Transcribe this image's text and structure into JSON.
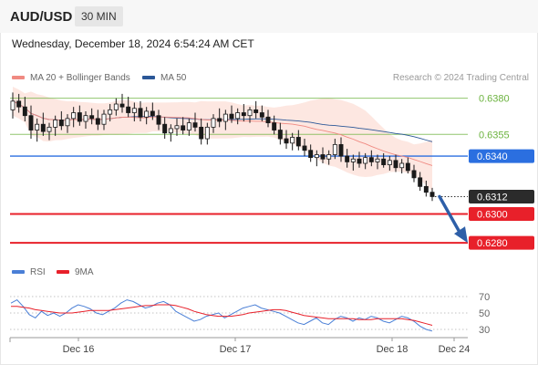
{
  "header": {
    "symbol": "AUD/USD",
    "timeframe": "30 MIN"
  },
  "datetime": "Wednesday, December 18, 2024 6:54:24 AM CET",
  "legend": {
    "ma20": {
      "label": "MA 20 + Bollinger Bands",
      "color": "#f08a82"
    },
    "ma50": {
      "label": "MA 50",
      "color": "#2b5797"
    },
    "credit": "Research © 2024 Trading Central",
    "rsi": {
      "label": "RSI",
      "color": "#4a7fd6"
    },
    "ma9": {
      "label": "9MA",
      "color": "#e8202a"
    }
  },
  "chart_data": {
    "type": "candlestick",
    "x_ticks": [
      "Dec 16",
      "Dec 17",
      "Dec 18",
      "Dec 24"
    ],
    "price_ylim": [
      0.627,
      0.6388
    ],
    "last_price": "0.6312",
    "levels": [
      {
        "value": 0.638,
        "label": "0.6380",
        "kind": "resistance",
        "color": "#6cb33f"
      },
      {
        "value": 0.6355,
        "label": "0.6355",
        "kind": "resistance",
        "color": "#6cb33f"
      },
      {
        "value": 0.634,
        "label": "0.6340",
        "kind": "pivot",
        "color": "#2b6fe0"
      },
      {
        "value": 0.63,
        "label": "0.6300",
        "kind": "support",
        "color": "#e8202a"
      },
      {
        "value": 0.628,
        "label": "0.6280",
        "kind": "support",
        "color": "#e8202a"
      }
    ],
    "forecast": {
      "from": 0.6312,
      "to": 0.628,
      "direction": "down"
    },
    "candles": [
      [
        0.6372,
        0.6384,
        0.6366,
        0.6378
      ],
      [
        0.6378,
        0.6383,
        0.637,
        0.6374
      ],
      [
        0.6374,
        0.6381,
        0.6364,
        0.6368
      ],
      [
        0.6368,
        0.6375,
        0.6352,
        0.6358
      ],
      [
        0.6358,
        0.6366,
        0.635,
        0.6362
      ],
      [
        0.6362,
        0.637,
        0.6354,
        0.6357
      ],
      [
        0.6357,
        0.6363,
        0.6351,
        0.636
      ],
      [
        0.636,
        0.6368,
        0.6354,
        0.6365
      ],
      [
        0.6365,
        0.6371,
        0.6358,
        0.6361
      ],
      [
        0.6361,
        0.6369,
        0.6356,
        0.6366
      ],
      [
        0.6366,
        0.6374,
        0.636,
        0.637
      ],
      [
        0.637,
        0.6375,
        0.6361,
        0.6364
      ],
      [
        0.6364,
        0.6371,
        0.6359,
        0.6368
      ],
      [
        0.6368,
        0.6373,
        0.6362,
        0.6366
      ],
      [
        0.6366,
        0.6372,
        0.6358,
        0.6362
      ],
      [
        0.6362,
        0.6372,
        0.6358,
        0.6369
      ],
      [
        0.6369,
        0.6376,
        0.6364,
        0.6372
      ],
      [
        0.6372,
        0.638,
        0.6368,
        0.6376
      ],
      [
        0.6376,
        0.6383,
        0.637,
        0.6374
      ],
      [
        0.6374,
        0.6381,
        0.6367,
        0.637
      ],
      [
        0.637,
        0.6377,
        0.6364,
        0.6373
      ],
      [
        0.6373,
        0.6378,
        0.6364,
        0.6367
      ],
      [
        0.6367,
        0.6374,
        0.6362,
        0.6371
      ],
      [
        0.6371,
        0.6377,
        0.6365,
        0.6368
      ],
      [
        0.6368,
        0.6372,
        0.6358,
        0.6362
      ],
      [
        0.6362,
        0.6367,
        0.6352,
        0.6356
      ],
      [
        0.6356,
        0.6362,
        0.635,
        0.6359
      ],
      [
        0.6359,
        0.6366,
        0.6354,
        0.6361
      ],
      [
        0.6361,
        0.6367,
        0.6355,
        0.6358
      ],
      [
        0.6358,
        0.6366,
        0.6354,
        0.6363
      ],
      [
        0.6363,
        0.637,
        0.6357,
        0.636
      ],
      [
        0.636,
        0.6366,
        0.6348,
        0.6352
      ],
      [
        0.6352,
        0.6363,
        0.6348,
        0.636
      ],
      [
        0.636,
        0.6369,
        0.6356,
        0.6366
      ],
      [
        0.6366,
        0.6373,
        0.636,
        0.6364
      ],
      [
        0.6364,
        0.6372,
        0.6358,
        0.6369
      ],
      [
        0.6369,
        0.6375,
        0.6363,
        0.6366
      ],
      [
        0.6366,
        0.6373,
        0.6362,
        0.637
      ],
      [
        0.637,
        0.6376,
        0.6364,
        0.6368
      ],
      [
        0.6368,
        0.6374,
        0.6363,
        0.6372
      ],
      [
        0.6372,
        0.6378,
        0.6366,
        0.637
      ],
      [
        0.637,
        0.6375,
        0.6364,
        0.6367
      ],
      [
        0.6367,
        0.6372,
        0.636,
        0.6363
      ],
      [
        0.6363,
        0.6368,
        0.6355,
        0.6358
      ],
      [
        0.6358,
        0.6363,
        0.6348,
        0.6352
      ],
      [
        0.6352,
        0.6358,
        0.6345,
        0.6349
      ],
      [
        0.6349,
        0.6356,
        0.6344,
        0.6353
      ],
      [
        0.6353,
        0.6358,
        0.6344,
        0.6347
      ],
      [
        0.6347,
        0.6352,
        0.634,
        0.6344
      ],
      [
        0.6344,
        0.6348,
        0.6336,
        0.6339
      ],
      [
        0.6339,
        0.6344,
        0.6333,
        0.6341
      ],
      [
        0.6341,
        0.6346,
        0.6335,
        0.6338
      ],
      [
        0.6338,
        0.6344,
        0.6334,
        0.6341
      ],
      [
        0.6341,
        0.6352,
        0.6338,
        0.6348
      ],
      [
        0.6348,
        0.6353,
        0.6336,
        0.634
      ],
      [
        0.634,
        0.6345,
        0.6332,
        0.6336
      ],
      [
        0.6336,
        0.6341,
        0.633,
        0.6338
      ],
      [
        0.6338,
        0.6343,
        0.6332,
        0.6335
      ],
      [
        0.6335,
        0.6342,
        0.6331,
        0.6339
      ],
      [
        0.6339,
        0.6344,
        0.6333,
        0.6336
      ],
      [
        0.6336,
        0.6341,
        0.6331,
        0.6338
      ],
      [
        0.6338,
        0.6342,
        0.6332,
        0.6334
      ],
      [
        0.6334,
        0.634,
        0.633,
        0.6337
      ],
      [
        0.6337,
        0.6341,
        0.6329,
        0.6332
      ],
      [
        0.6332,
        0.6338,
        0.6328,
        0.6335
      ],
      [
        0.6335,
        0.6339,
        0.6328,
        0.633
      ],
      [
        0.633,
        0.6334,
        0.6322,
        0.6325
      ],
      [
        0.6325,
        0.6329,
        0.6316,
        0.6319
      ],
      [
        0.6319,
        0.6323,
        0.6312,
        0.6315
      ],
      [
        0.6315,
        0.6318,
        0.6309,
        0.6312
      ]
    ],
    "rsi": {
      "ticks": [
        70,
        50,
        30
      ],
      "ylim": [
        20,
        80
      ],
      "rsi_values": [
        62,
        66,
        58,
        48,
        44,
        52,
        47,
        50,
        46,
        50,
        56,
        60,
        58,
        55,
        50,
        48,
        52,
        56,
        62,
        66,
        64,
        60,
        56,
        58,
        62,
        64,
        60,
        52,
        48,
        44,
        40,
        42,
        46,
        48,
        50,
        44,
        48,
        52,
        56,
        58,
        60,
        56,
        54,
        52,
        50,
        46,
        42,
        38,
        36,
        40,
        44,
        38,
        36,
        42,
        46,
        44,
        40,
        44,
        42,
        46,
        44,
        40,
        38,
        42,
        46,
        44,
        40,
        34,
        30,
        28
      ],
      "ma9_values": [
        58,
        58,
        57,
        56,
        54,
        53,
        52,
        51,
        50,
        50,
        50,
        51,
        52,
        53,
        53,
        53,
        53,
        54,
        55,
        56,
        57,
        58,
        59,
        59,
        60,
        60,
        60,
        59,
        57,
        55,
        52,
        50,
        48,
        47,
        46,
        46,
        46,
        47,
        48,
        50,
        51,
        52,
        53,
        54,
        54,
        53,
        51,
        49,
        47,
        46,
        45,
        44,
        43,
        43,
        43,
        43,
        43,
        42,
        42,
        42,
        43,
        43,
        43,
        43,
        43,
        42,
        41,
        39,
        37,
        35
      ]
    }
  }
}
